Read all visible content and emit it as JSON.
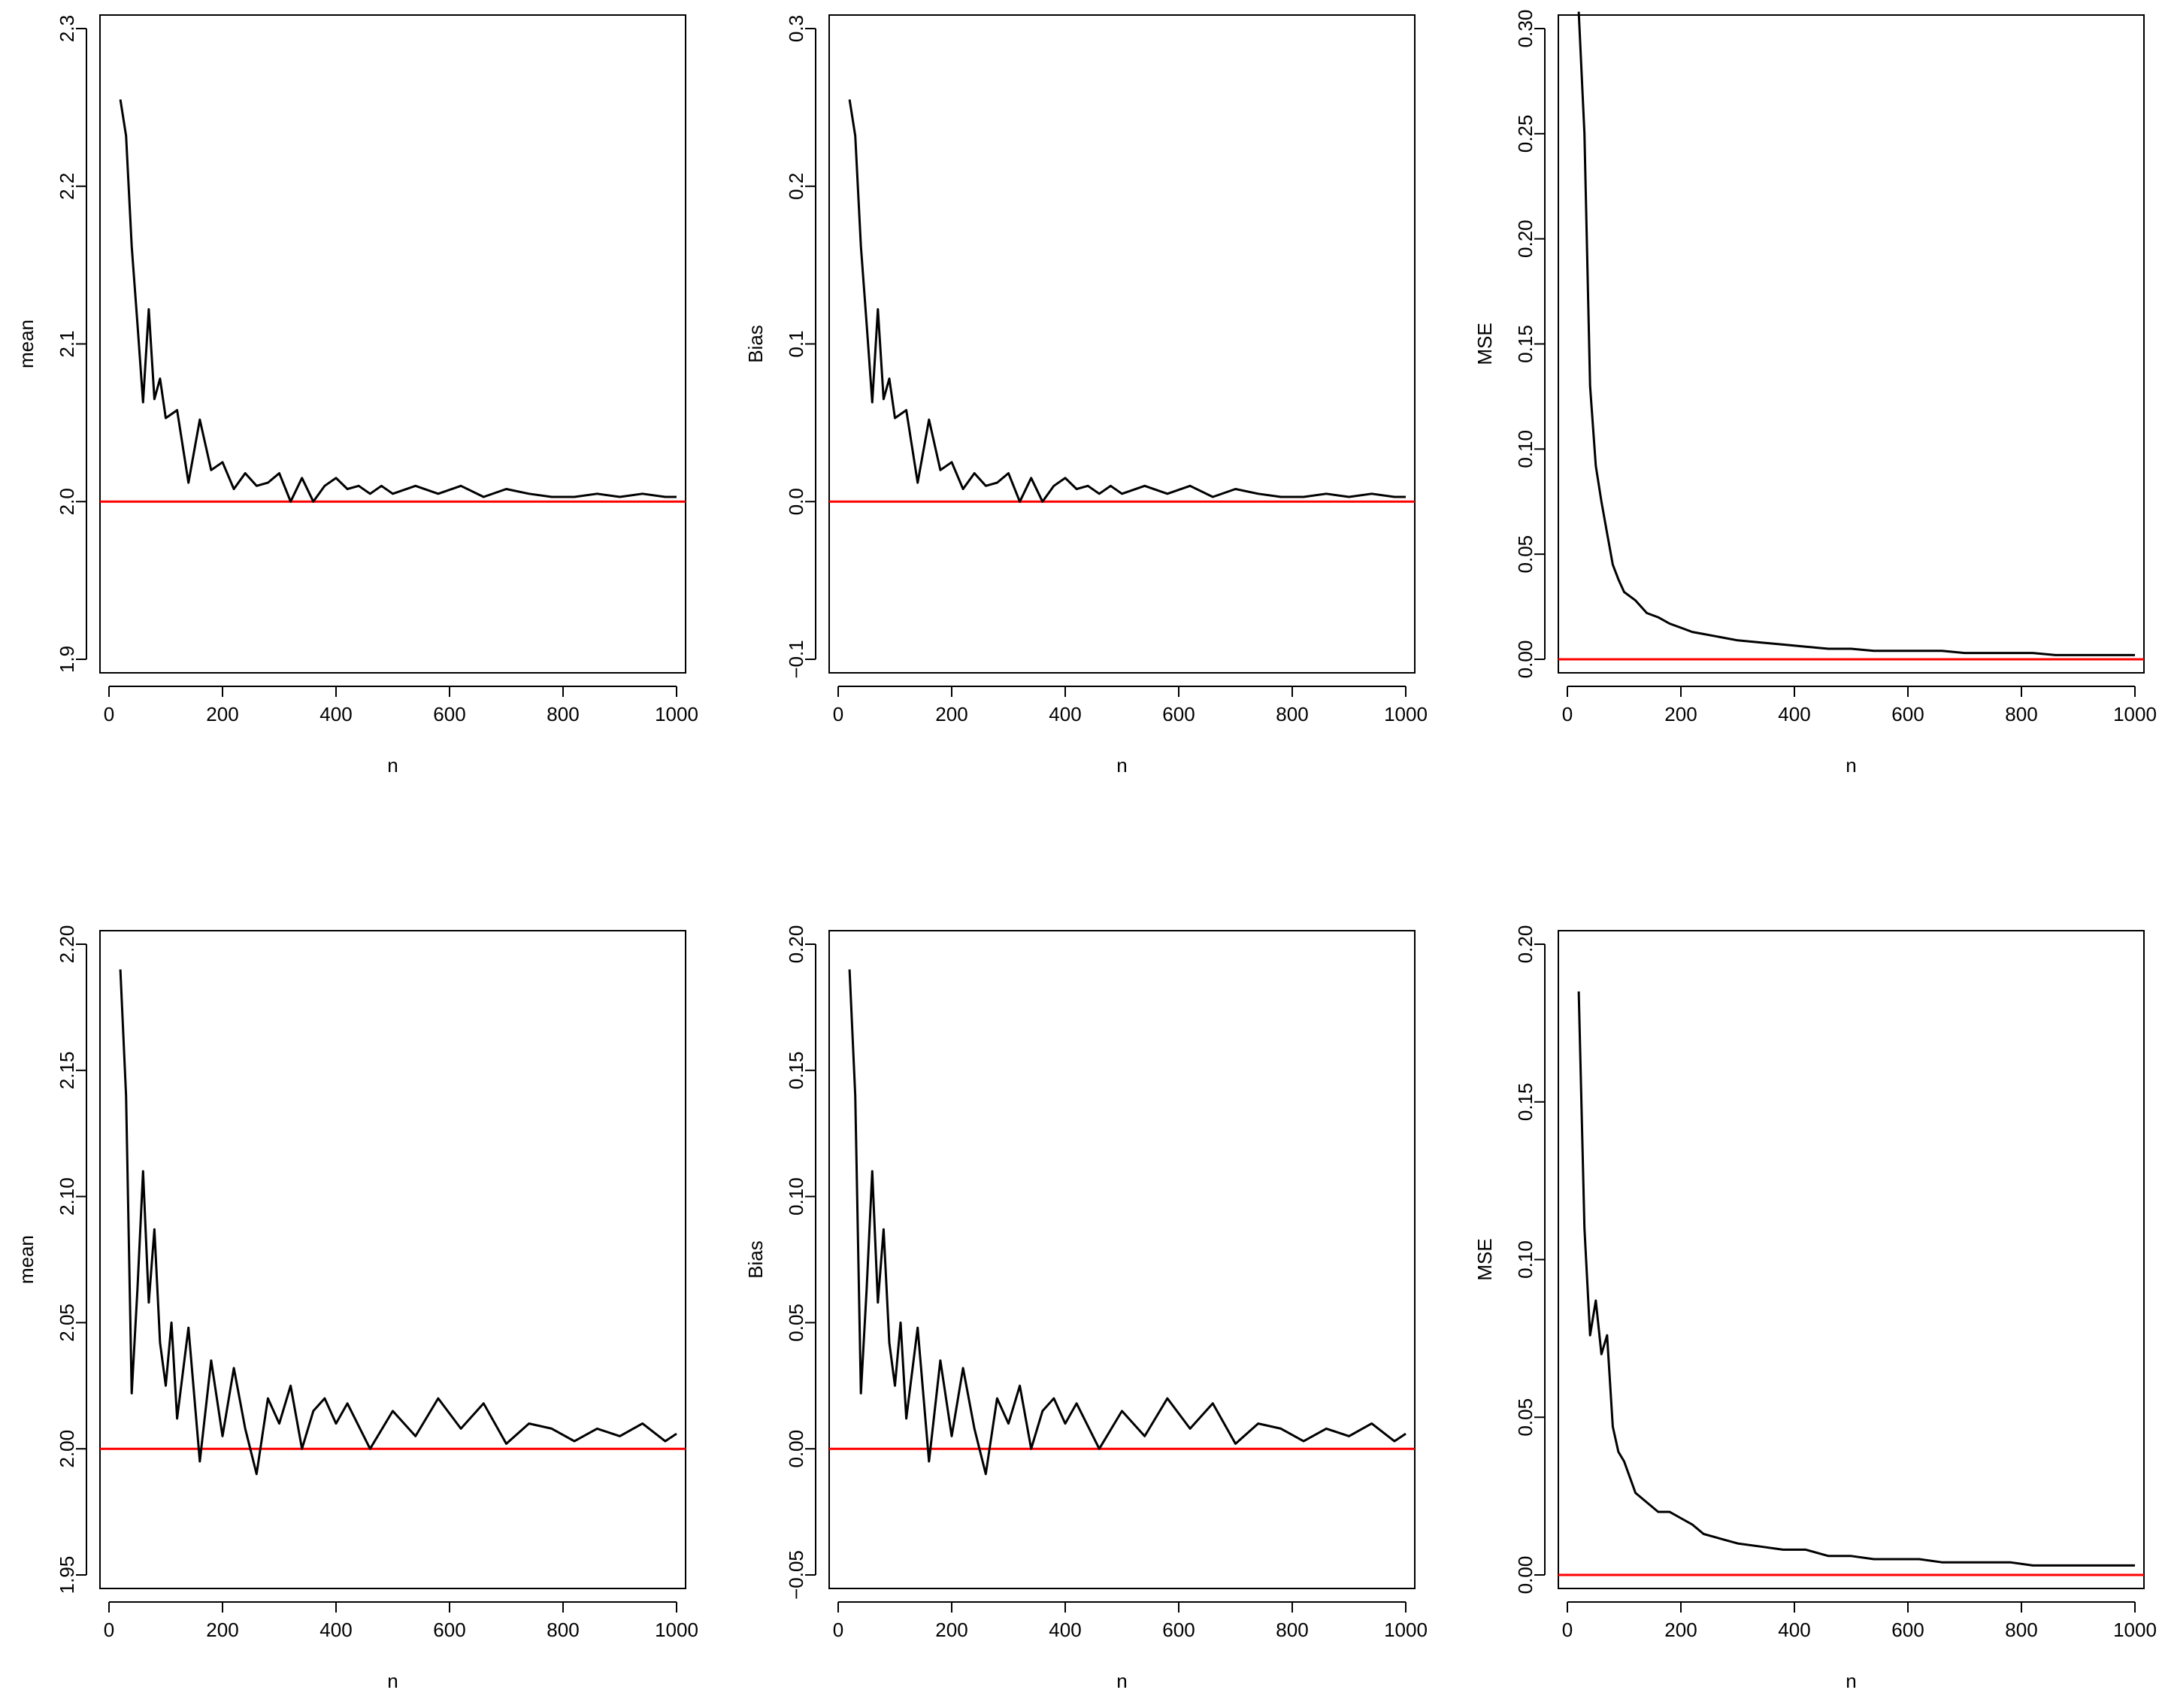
{
  "figure": {
    "rows": 2,
    "cols": 3,
    "colors": {
      "series": "#000000",
      "reference": "#ff0000",
      "frame": "#000000"
    }
  },
  "chart_data": [
    {
      "type": "line",
      "xlabel": "n",
      "ylabel": "mean",
      "xlim": [
        0,
        1000
      ],
      "ylim": [
        1.9,
        2.3
      ],
      "xticks": [
        0,
        200,
        400,
        600,
        800,
        1000
      ],
      "xtick_labels": [
        "0",
        "200",
        "400",
        "600",
        "800",
        "1000"
      ],
      "yticks": [
        1.9,
        2.0,
        2.1,
        2.2,
        2.3
      ],
      "ytick_labels": [
        "1.9",
        "2.0",
        "2.1",
        "2.2",
        "2.3"
      ],
      "reference_line": 2.0,
      "series": [
        {
          "x": [
            20,
            30,
            40,
            50,
            60,
            70,
            80,
            90,
            100,
            120,
            140,
            160,
            180,
            200,
            220,
            240,
            260,
            280,
            300,
            320,
            340,
            360,
            380,
            400,
            420,
            440,
            460,
            480,
            500,
            540,
            580,
            620,
            660,
            700,
            740,
            780,
            820,
            860,
            900,
            940,
            980,
            1000
          ],
          "y": [
            2.255,
            2.232,
            2.162,
            2.113,
            2.063,
            2.122,
            2.065,
            2.078,
            2.053,
            2.058,
            2.012,
            2.052,
            2.02,
            2.025,
            2.008,
            2.018,
            2.01,
            2.012,
            2.018,
            2.0,
            2.015,
            2.0,
            2.01,
            2.015,
            2.008,
            2.01,
            2.005,
            2.01,
            2.005,
            2.01,
            2.005,
            2.01,
            2.003,
            2.008,
            2.005,
            2.003,
            2.003,
            2.005,
            2.003,
            2.005,
            2.003,
            2.003
          ]
        }
      ]
    },
    {
      "type": "line",
      "xlabel": "n",
      "ylabel": "Bias",
      "xlim": [
        0,
        1000
      ],
      "ylim": [
        -0.1,
        0.3
      ],
      "xticks": [
        0,
        200,
        400,
        600,
        800,
        1000
      ],
      "xtick_labels": [
        "0",
        "200",
        "400",
        "600",
        "800",
        "1000"
      ],
      "yticks": [
        -0.1,
        0.0,
        0.1,
        0.2,
        0.3
      ],
      "ytick_labels": [
        "−0.1",
        "0.0",
        "0.1",
        "0.2",
        "0.3"
      ],
      "reference_line": 0.0,
      "series": [
        {
          "x": [
            20,
            30,
            40,
            50,
            60,
            70,
            80,
            90,
            100,
            120,
            140,
            160,
            180,
            200,
            220,
            240,
            260,
            280,
            300,
            320,
            340,
            360,
            380,
            400,
            420,
            440,
            460,
            480,
            500,
            540,
            580,
            620,
            660,
            700,
            740,
            780,
            820,
            860,
            900,
            940,
            980,
            1000
          ],
          "y": [
            0.255,
            0.232,
            0.162,
            0.113,
            0.063,
            0.122,
            0.065,
            0.078,
            0.053,
            0.058,
            0.012,
            0.052,
            0.02,
            0.025,
            0.008,
            0.018,
            0.01,
            0.012,
            0.018,
            0.0,
            0.015,
            0.0,
            0.01,
            0.015,
            0.008,
            0.01,
            0.005,
            0.01,
            0.005,
            0.01,
            0.005,
            0.01,
            0.003,
            0.008,
            0.005,
            0.003,
            0.003,
            0.005,
            0.003,
            0.005,
            0.003,
            0.003
          ]
        }
      ]
    },
    {
      "type": "line",
      "xlabel": "n",
      "ylabel": "MSE",
      "xlim": [
        0,
        1000
      ],
      "ylim": [
        0.0,
        0.3
      ],
      "xticks": [
        0,
        200,
        400,
        600,
        800,
        1000
      ],
      "xtick_labels": [
        "0",
        "200",
        "400",
        "600",
        "800",
        "1000"
      ],
      "yticks": [
        0.0,
        0.05,
        0.1,
        0.15,
        0.2,
        0.25,
        0.3
      ],
      "ytick_labels": [
        "0.00",
        "0.05",
        "0.10",
        "0.15",
        "0.20",
        "0.25",
        "0.30"
      ],
      "reference_line": 0.0,
      "series": [
        {
          "x": [
            20,
            30,
            40,
            50,
            60,
            70,
            80,
            90,
            100,
            120,
            140,
            160,
            180,
            200,
            220,
            240,
            260,
            280,
            300,
            340,
            380,
            420,
            460,
            500,
            540,
            580,
            620,
            660,
            700,
            740,
            780,
            820,
            860,
            900,
            940,
            980,
            1000
          ],
          "y": [
            0.308,
            0.25,
            0.13,
            0.092,
            0.075,
            0.06,
            0.045,
            0.038,
            0.032,
            0.028,
            0.022,
            0.02,
            0.017,
            0.015,
            0.013,
            0.012,
            0.011,
            0.01,
            0.009,
            0.008,
            0.007,
            0.006,
            0.005,
            0.005,
            0.004,
            0.004,
            0.004,
            0.004,
            0.003,
            0.003,
            0.003,
            0.003,
            0.002,
            0.002,
            0.002,
            0.002,
            0.002
          ]
        }
      ]
    },
    {
      "type": "line",
      "xlabel": "n",
      "ylabel": "mean",
      "xlim": [
        0,
        1000
      ],
      "ylim": [
        1.95,
        2.2
      ],
      "xticks": [
        0,
        200,
        400,
        600,
        800,
        1000
      ],
      "xtick_labels": [
        "0",
        "200",
        "400",
        "600",
        "800",
        "1000"
      ],
      "yticks": [
        1.95,
        2.0,
        2.05,
        2.1,
        2.15,
        2.2
      ],
      "ytick_labels": [
        "1.95",
        "2.00",
        "2.05",
        "2.10",
        "2.15",
        "2.20"
      ],
      "reference_line": 2.0,
      "series": [
        {
          "x": [
            20,
            30,
            40,
            50,
            60,
            70,
            80,
            90,
            100,
            110,
            120,
            140,
            160,
            180,
            200,
            220,
            240,
            260,
            280,
            300,
            320,
            340,
            360,
            380,
            400,
            420,
            460,
            500,
            540,
            580,
            620,
            660,
            700,
            740,
            780,
            820,
            860,
            900,
            940,
            980,
            1000
          ],
          "y": [
            2.19,
            2.14,
            2.022,
            2.063,
            2.11,
            2.058,
            2.087,
            2.042,
            2.025,
            2.05,
            2.012,
            2.048,
            1.995,
            2.035,
            2.005,
            2.032,
            2.008,
            1.99,
            2.02,
            2.01,
            2.025,
            2.0,
            2.015,
            2.02,
            2.01,
            2.018,
            2.0,
            2.015,
            2.005,
            2.02,
            2.008,
            2.018,
            2.002,
            2.01,
            2.008,
            2.003,
            2.008,
            2.005,
            2.01,
            2.003,
            2.006
          ]
        }
      ]
    },
    {
      "type": "line",
      "xlabel": "n",
      "ylabel": "Bias",
      "xlim": [
        0,
        1000
      ],
      "ylim": [
        -0.05,
        0.2
      ],
      "xticks": [
        0,
        200,
        400,
        600,
        800,
        1000
      ],
      "xtick_labels": [
        "0",
        "200",
        "400",
        "600",
        "800",
        "1000"
      ],
      "yticks": [
        -0.05,
        0.0,
        0.05,
        0.1,
        0.15,
        0.2
      ],
      "ytick_labels": [
        "−0.05",
        "0.00",
        "0.05",
        "0.10",
        "0.15",
        "0.20"
      ],
      "reference_line": 0.0,
      "series": [
        {
          "x": [
            20,
            30,
            40,
            50,
            60,
            70,
            80,
            90,
            100,
            110,
            120,
            140,
            160,
            180,
            200,
            220,
            240,
            260,
            280,
            300,
            320,
            340,
            360,
            380,
            400,
            420,
            460,
            500,
            540,
            580,
            620,
            660,
            700,
            740,
            780,
            820,
            860,
            900,
            940,
            980,
            1000
          ],
          "y": [
            0.19,
            0.14,
            0.022,
            0.063,
            0.11,
            0.058,
            0.087,
            0.042,
            0.025,
            0.05,
            0.012,
            0.048,
            -0.005,
            0.035,
            0.005,
            0.032,
            0.008,
            -0.01,
            0.02,
            0.01,
            0.025,
            0.0,
            0.015,
            0.02,
            0.01,
            0.018,
            0.0,
            0.015,
            0.005,
            0.02,
            0.008,
            0.018,
            0.002,
            0.01,
            0.008,
            0.003,
            0.008,
            0.005,
            0.01,
            0.003,
            0.006
          ]
        }
      ]
    },
    {
      "type": "line",
      "xlabel": "n",
      "ylabel": "MSE",
      "xlim": [
        0,
        1000
      ],
      "ylim": [
        0.0,
        0.2
      ],
      "xticks": [
        0,
        200,
        400,
        600,
        800,
        1000
      ],
      "xtick_labels": [
        "0",
        "200",
        "400",
        "600",
        "800",
        "1000"
      ],
      "yticks": [
        0.0,
        0.05,
        0.1,
        0.15,
        0.2
      ],
      "ytick_labels": [
        "0.00",
        "0.05",
        "0.10",
        "0.15",
        "0.20"
      ],
      "reference_line": 0.0,
      "series": [
        {
          "x": [
            20,
            30,
            40,
            50,
            60,
            70,
            80,
            90,
            100,
            120,
            140,
            160,
            180,
            200,
            220,
            240,
            260,
            280,
            300,
            340,
            380,
            420,
            460,
            500,
            540,
            580,
            620,
            660,
            700,
            740,
            780,
            820,
            860,
            900,
            940,
            980,
            1000
          ],
          "y": [
            0.185,
            0.11,
            0.076,
            0.087,
            0.07,
            0.076,
            0.047,
            0.039,
            0.036,
            0.026,
            0.023,
            0.02,
            0.02,
            0.018,
            0.016,
            0.013,
            0.012,
            0.011,
            0.01,
            0.009,
            0.008,
            0.008,
            0.006,
            0.006,
            0.005,
            0.005,
            0.005,
            0.004,
            0.004,
            0.004,
            0.004,
            0.003,
            0.003,
            0.003,
            0.003,
            0.003,
            0.003
          ]
        }
      ]
    }
  ]
}
